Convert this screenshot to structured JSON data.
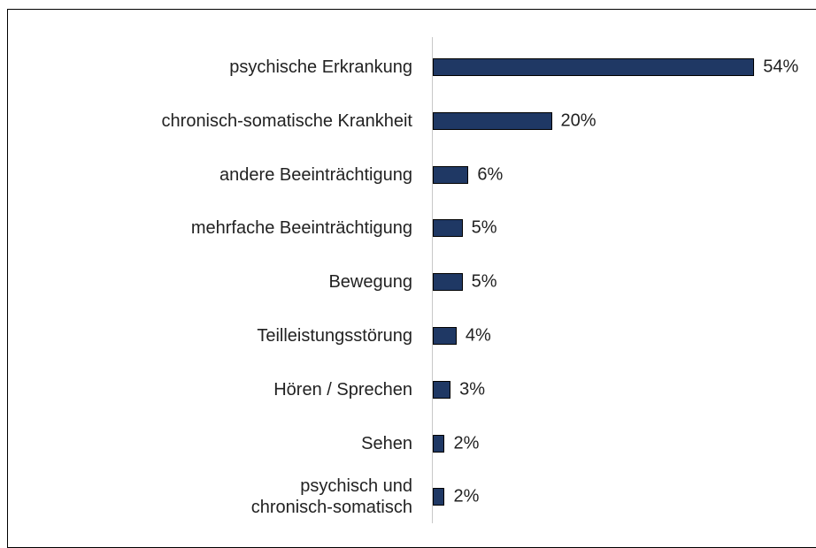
{
  "chart_data": {
    "type": "barh",
    "categories": [
      "psychische Erkrankung",
      "chronisch-somatische Krankheit",
      "andere Beeinträchtigung",
      "mehrfache Beeinträchtigung",
      "Bewegung",
      "Teilleistungsstörung",
      "Hören / Sprechen",
      "Sehen",
      "psychisch und\nchronisch-somatisch"
    ],
    "values": [
      54,
      20,
      6,
      5,
      5,
      4,
      3,
      2,
      2
    ],
    "value_labels": [
      "54%",
      "20%",
      "6%",
      "5%",
      "5%",
      "4%",
      "3%",
      "2%",
      "2%"
    ],
    "color": "#1f3864",
    "xlim": [
      0,
      55
    ]
  }
}
